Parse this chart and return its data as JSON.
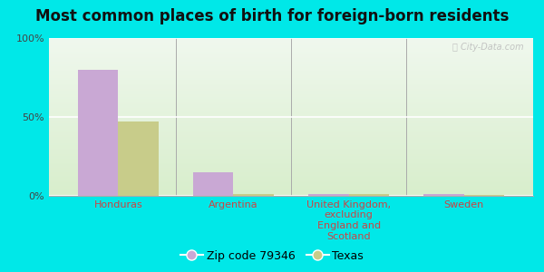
{
  "title": "Most common places of birth for foreign-born residents",
  "categories": [
    "Honduras",
    "Argentina",
    "United Kingdom,\nexcluding\nEngland and\nScotland",
    "Sweden"
  ],
  "zip_values": [
    80.0,
    15.0,
    1.2,
    1.0
  ],
  "texas_values": [
    47.0,
    1.2,
    1.2,
    0.8
  ],
  "zip_color": "#c9a8d4",
  "texas_color": "#c8cc8a",
  "bar_width": 0.35,
  "ylim": [
    0,
    100
  ],
  "yticks": [
    0,
    50,
    100
  ],
  "ytick_labels": [
    "0%",
    "50%",
    "100%"
  ],
  "bg_top_color": "#f0f8ee",
  "bg_bottom_color": "#d8eecc",
  "outer_background": "#00e8e8",
  "watermark": "ⓘ City-Data.com",
  "legend_zip": "Zip code 79346",
  "legend_texas": "Texas",
  "title_fontsize": 12,
  "tick_fontsize": 8,
  "legend_fontsize": 9
}
